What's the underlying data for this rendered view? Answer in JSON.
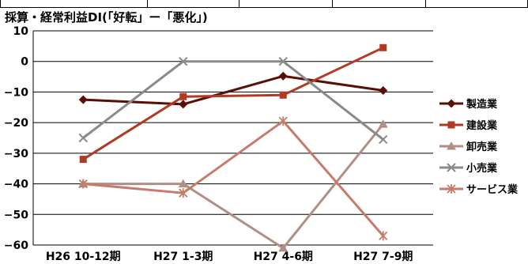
{
  "chart_data": {
    "type": "line",
    "title": "採算・経常利益DI(「好転」ー「悪化」)",
    "xlabel": "",
    "ylabel": "",
    "categories": [
      "H26 10-12期",
      "H27 1-3期",
      "H27 4-6期",
      "H27 7-9期"
    ],
    "ylim": [
      -60,
      10
    ],
    "yticks": [
      10,
      0,
      -10,
      -20,
      -30,
      -40,
      -50,
      -60
    ],
    "yticks_text": [
      "10",
      "0",
      "−10",
      "−20",
      "−30",
      "−40",
      "−50",
      "−60"
    ],
    "grid": true,
    "legend_position": "right",
    "series": [
      {
        "name": "製造業",
        "values": [
          -12.5,
          -14,
          -4.8,
          -9.5
        ],
        "color": "#5a0f06",
        "marker": "diamond"
      },
      {
        "name": "建設業",
        "values": [
          -32,
          -11.5,
          -11,
          4.5
        ],
        "color": "#b03a23",
        "marker": "square"
      },
      {
        "name": "卸売業",
        "values": [
          -40,
          -40,
          -61,
          -20.5
        ],
        "color": "#b09086",
        "marker": "triangle"
      },
      {
        "name": "小売業",
        "values": [
          -25,
          0,
          0,
          -25.5
        ],
        "color": "#8a8a8a",
        "marker": "x"
      },
      {
        "name": "サービス業",
        "values": [
          -40,
          -43,
          -19.5,
          -57
        ],
        "color": "#c67b6c",
        "marker": "star"
      }
    ]
  }
}
